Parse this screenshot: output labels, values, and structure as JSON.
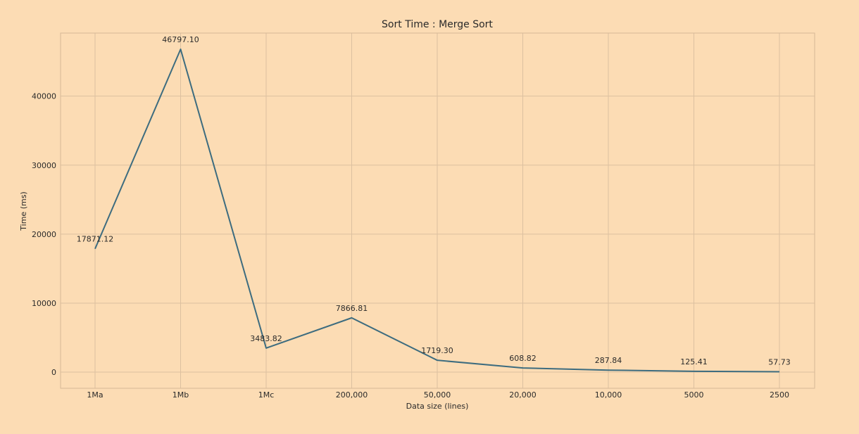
{
  "chart_data": {
    "type": "line",
    "title": "Sort Time : Merge Sort",
    "xlabel": "Data size (lines)",
    "ylabel": "Time (ms)",
    "categories": [
      "1Ma",
      "1Mb",
      "1Mc",
      "200,000",
      "50,000",
      "20,000",
      "10,000",
      "5000",
      "2500"
    ],
    "series": [
      {
        "values": [
          17871.12,
          46797.1,
          3483.82,
          7866.81,
          1719.3,
          608.82,
          287.84,
          125.41,
          57.73
        ]
      }
    ],
    "data_labels": [
      "17871.12",
      "46797.10",
      "3483.82",
      "7866.81",
      "1719.30",
      "608.82",
      "287.84",
      "125.41",
      "57.73"
    ],
    "y_ticks": [
      0,
      10000,
      20000,
      30000,
      40000
    ],
    "y_tick_labels": [
      "0",
      "10000",
      "20000",
      "30000",
      "40000"
    ],
    "ylim": [
      -2340,
      49140
    ],
    "grid": true,
    "line_color": "#3d6c7f",
    "background_color": "#fcdcb4"
  }
}
